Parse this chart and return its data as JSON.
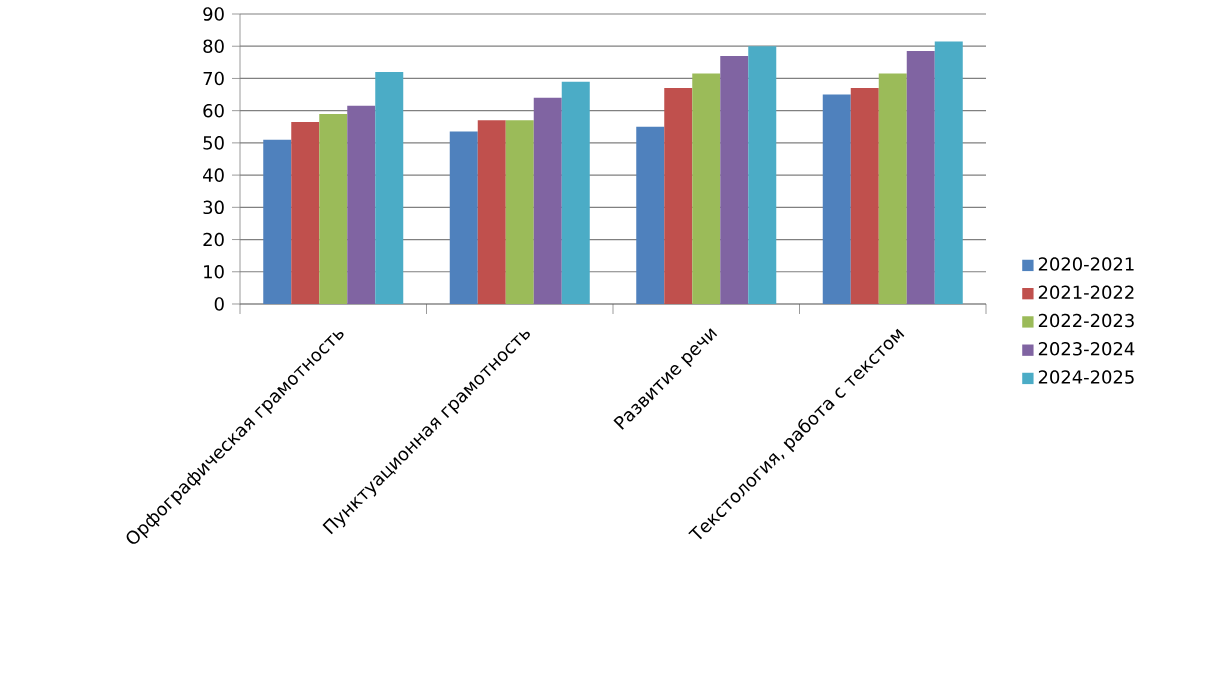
{
  "chart_data": {
    "type": "bar",
    "categories": [
      "Орфографическая грамотность",
      "Пунктуационная грамотность",
      "Развитие речи",
      "Текстология, работа с текстом"
    ],
    "series": [
      {
        "name": "2020-2021",
        "color": "#4f81bd",
        "values": [
          51,
          53.5,
          55,
          65
        ]
      },
      {
        "name": "2021-2022",
        "color": "#c0504d",
        "values": [
          56.5,
          57,
          67,
          67
        ]
      },
      {
        "name": "2022-2023",
        "color": "#9bbb59",
        "values": [
          59,
          57,
          71.5,
          71.5
        ]
      },
      {
        "name": "2023-2024",
        "color": "#8064a2",
        "values": [
          61.5,
          64,
          77,
          78.5
        ]
      },
      {
        "name": "2024-2025",
        "color": "#4bacc6",
        "values": [
          72,
          69,
          80,
          81.5
        ]
      }
    ],
    "ylim": [
      0,
      90
    ],
    "yticks": [
      0,
      10,
      20,
      30,
      40,
      50,
      60,
      70,
      80,
      90
    ],
    "grid": "y",
    "legend": "right"
  }
}
